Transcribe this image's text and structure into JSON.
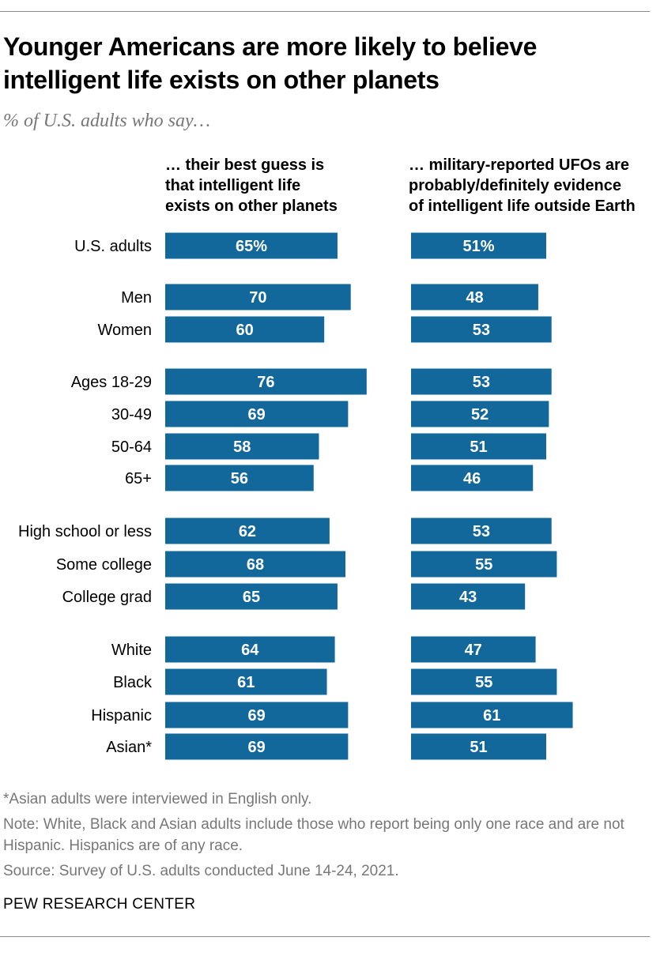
{
  "chart_data": {
    "type": "bar",
    "orientation": "horizontal",
    "title": "Younger Americans are more likely to believe intelligent life exists on other planets",
    "subtitle": "% of U.S. adults who say…",
    "categories": [
      "U.S. adults",
      "Men",
      "Women",
      "Ages 18-29",
      "30-49",
      "50-64",
      "65+",
      "High school or less",
      "Some college",
      "College grad",
      "White",
      "Black",
      "Hispanic",
      "Asian*"
    ],
    "groups": [
      [
        0
      ],
      [
        1,
        2
      ],
      [
        3,
        4,
        5,
        6
      ],
      [
        7,
        8,
        9
      ],
      [
        10,
        11,
        12,
        13
      ]
    ],
    "series": [
      {
        "name": "… their best guess is\nthat intelligent life\nexists on other planets",
        "values": [
          65,
          70,
          60,
          76,
          69,
          58,
          56,
          62,
          68,
          65,
          64,
          61,
          69,
          69
        ]
      },
      {
        "name": "… military-reported UFOs are\nprobably/definitely evidence\nof intelligent life outside Earth",
        "values": [
          51,
          48,
          53,
          53,
          52,
          51,
          46,
          53,
          55,
          43,
          47,
          55,
          61,
          51
        ]
      }
    ],
    "first_label_suffix": "%",
    "color": "#13689b",
    "grid": false
  },
  "footnotes": [
    "*Asian adults were interviewed in English only.",
    "Note: White, Black and Asian adults include those who report being only one race and are not Hispanic. Hispanics are of any race.",
    "Source: Survey of U.S. adults conducted June 14-24, 2021."
  ],
  "brand": "PEW RESEARCH CENTER"
}
